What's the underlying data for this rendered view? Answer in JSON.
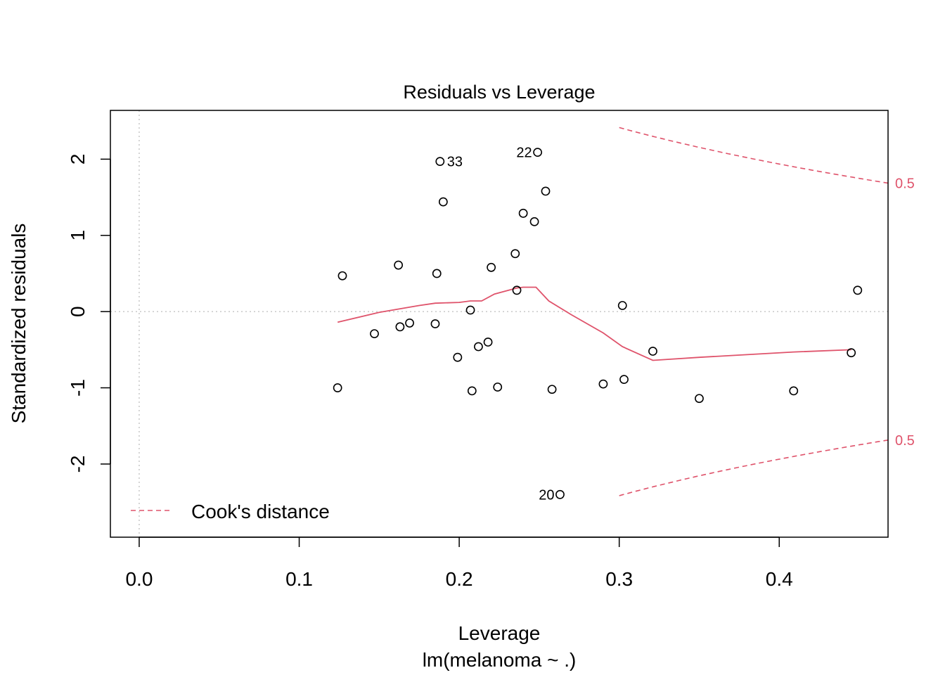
{
  "chart_data": {
    "type": "scatter",
    "title": "Residuals vs Leverage",
    "xlabel": "Leverage",
    "subtitle": "lm(melanoma ~ .)",
    "ylabel": "Standardized residuals",
    "xlim": [
      -0.018,
      0.468
    ],
    "ylim": [
      -2.96,
      2.64
    ],
    "xticks": [
      "0.0",
      "0.1",
      "0.2",
      "0.3",
      "0.4"
    ],
    "xtick_values": [
      0,
      0.1,
      0.2,
      0.3,
      0.4
    ],
    "yticks": [
      "-2",
      "-1",
      "0",
      "1",
      "2"
    ],
    "ytick_values": [
      -2,
      -1,
      0,
      1,
      2
    ],
    "points": [
      {
        "x": 0.124,
        "y": -1.0
      },
      {
        "x": 0.127,
        "y": 0.47
      },
      {
        "x": 0.147,
        "y": -0.29
      },
      {
        "x": 0.162,
        "y": 0.61
      },
      {
        "x": 0.163,
        "y": -0.2
      },
      {
        "x": 0.169,
        "y": -0.15
      },
      {
        "x": 0.186,
        "y": 0.5
      },
      {
        "x": 0.185,
        "y": -0.16
      },
      {
        "x": 0.188,
        "y": 1.97,
        "label": "33"
      },
      {
        "x": 0.19,
        "y": 1.44
      },
      {
        "x": 0.199,
        "y": -0.6
      },
      {
        "x": 0.207,
        "y": 0.02
      },
      {
        "x": 0.208,
        "y": -1.04
      },
      {
        "x": 0.212,
        "y": -0.46
      },
      {
        "x": 0.218,
        "y": -0.4
      },
      {
        "x": 0.22,
        "y": 0.58
      },
      {
        "x": 0.224,
        "y": -0.99
      },
      {
        "x": 0.235,
        "y": 0.76
      },
      {
        "x": 0.236,
        "y": 0.28
      },
      {
        "x": 0.24,
        "y": 1.29
      },
      {
        "x": 0.247,
        "y": 1.18
      },
      {
        "x": 0.249,
        "y": 2.09,
        "label": "22"
      },
      {
        "x": 0.254,
        "y": 1.58
      },
      {
        "x": 0.258,
        "y": -1.02
      },
      {
        "x": 0.263,
        "y": -2.4,
        "label": "20"
      },
      {
        "x": 0.29,
        "y": -0.95
      },
      {
        "x": 0.302,
        "y": 0.08
      },
      {
        "x": 0.303,
        "y": -0.89
      },
      {
        "x": 0.321,
        "y": -0.52
      },
      {
        "x": 0.35,
        "y": -1.14
      },
      {
        "x": 0.409,
        "y": -1.04
      },
      {
        "x": 0.445,
        "y": -0.54
      },
      {
        "x": 0.449,
        "y": 0.28
      }
    ],
    "smoother": [
      {
        "x": 0.124,
        "y": -0.14
      },
      {
        "x": 0.15,
        "y": -0.01
      },
      {
        "x": 0.175,
        "y": 0.08
      },
      {
        "x": 0.185,
        "y": 0.11
      },
      {
        "x": 0.2,
        "y": 0.12
      },
      {
        "x": 0.207,
        "y": 0.14
      },
      {
        "x": 0.214,
        "y": 0.14
      },
      {
        "x": 0.222,
        "y": 0.23
      },
      {
        "x": 0.236,
        "y": 0.31
      },
      {
        "x": 0.24,
        "y": 0.32
      },
      {
        "x": 0.248,
        "y": 0.32
      },
      {
        "x": 0.256,
        "y": 0.14
      },
      {
        "x": 0.27,
        "y": -0.04
      },
      {
        "x": 0.29,
        "y": -0.28
      },
      {
        "x": 0.302,
        "y": -0.46
      },
      {
        "x": 0.321,
        "y": -0.64
      },
      {
        "x": 0.35,
        "y": -0.6
      },
      {
        "x": 0.409,
        "y": -0.53
      },
      {
        "x": 0.445,
        "y": -0.5
      }
    ],
    "cooks_contour_label": "0.5",
    "cooks_color": "#DF536B",
    "legend": {
      "label": "Cook's distance",
      "position": "bottom-left"
    },
    "n_params": 5,
    "reference_lines": {
      "h": 0,
      "v": 0
    }
  }
}
